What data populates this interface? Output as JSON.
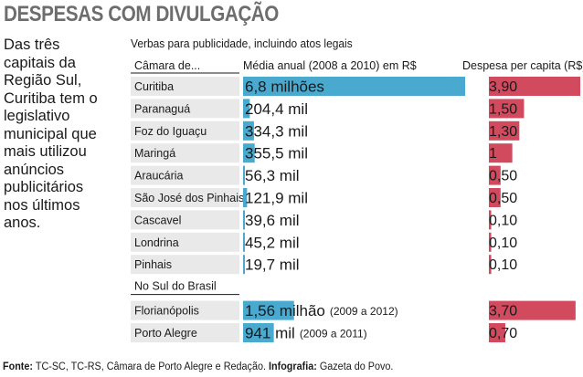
{
  "title": "DESPESAS COM DIVULGAÇÃO",
  "intro": "Das três\ncapitais da\nRegião Sul,\nCuritiba tem o\nlegislativo\nmunicipal que\nmais utilizou\nanúncios\npublicitários\nnos últimos\nanos.",
  "footer": {
    "source_label": "Fonte:",
    "source_text": " TC-SC, TC-RS, Câmara de Porto Alegre e Redação. ",
    "credit_label": "Infografia:",
    "credit_text": " Gazeta do Povo."
  },
  "colors": {
    "annual_bar": "#4aa9cf",
    "capita_bar": "#d24a5e",
    "row_bg": "#e9e9e9",
    "title": "#6d6d6d"
  },
  "chart_data": {
    "type": "bar",
    "subtitle": "Verbas para publicidade, incluindo atos legais",
    "columns": {
      "camara": "Câmara de...",
      "annual": "Média anual (2008 a 2010) em R$",
      "capita": "Despesa per capita (R$)"
    },
    "annual_unit": "R$",
    "annual_xlim": [
      0,
      6800000
    ],
    "capita_xlim": [
      0,
      3.9
    ],
    "section_label": "No Sul do Brasil",
    "groups": [
      {
        "rows": [
          {
            "name": "Curitiba",
            "annual": 6800000,
            "annual_label": "6,8 milhões",
            "capita": 3.9,
            "capita_label": "3,90"
          },
          {
            "name": "Paranaguá",
            "annual": 204400,
            "annual_label": "204,4 mil",
            "capita": 1.5,
            "capita_label": "1,50"
          },
          {
            "name": "Foz do Iguaçu",
            "annual": 334300,
            "annual_label": "334,3 mil",
            "capita": 1.3,
            "capita_label": "1,30"
          },
          {
            "name": "Maringá",
            "annual": 355500,
            "annual_label": "355,5 mil",
            "capita": 1.0,
            "capita_label": "1"
          },
          {
            "name": "Araucária",
            "annual": 56300,
            "annual_label": "56,3 mil",
            "capita": 0.5,
            "capita_label": "0,50"
          },
          {
            "name": "São José dos Pinhais",
            "annual": 121900,
            "annual_label": "121,9 mil",
            "capita": 0.5,
            "capita_label": "0,50"
          },
          {
            "name": "Cascavel",
            "annual": 39600,
            "annual_label": "39,6 mil",
            "capita": 0.1,
            "capita_label": "0,10"
          },
          {
            "name": "Londrina",
            "annual": 45200,
            "annual_label": "45,2 mil",
            "capita": 0.1,
            "capita_label": "0,10"
          },
          {
            "name": "Pinhais",
            "annual": 19700,
            "annual_label": "19,7 mil",
            "capita": 0.1,
            "capita_label": "0,10"
          }
        ]
      },
      {
        "rows": [
          {
            "name": "Florianópolis",
            "annual": 1560000,
            "annual_label": "1,56 milhão",
            "annual_note": "(2009 a 2012)",
            "capita": 3.7,
            "capita_label": "3,70"
          },
          {
            "name": "Porto Alegre",
            "annual": 941000,
            "annual_label": "941 mil",
            "annual_note": "(2009 a 2011)",
            "capita": 0.7,
            "capita_label": "0,70"
          }
        ]
      }
    ]
  }
}
